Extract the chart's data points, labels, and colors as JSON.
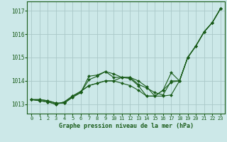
{
  "bg_color": "#cce8e8",
  "grid_color": "#aac8c8",
  "line_color": "#1a5c1a",
  "marker_color": "#1a5c1a",
  "xlabel": "Graphe pression niveau de la mer (hPa)",
  "xlabel_color": "#1a5c1a",
  "xlim": [
    -0.5,
    23.5
  ],
  "ylim": [
    1012.6,
    1017.4
  ],
  "yticks": [
    1013,
    1014,
    1015,
    1016,
    1017
  ],
  "xticks": [
    0,
    1,
    2,
    3,
    4,
    5,
    6,
    7,
    8,
    9,
    10,
    11,
    12,
    13,
    14,
    15,
    16,
    17,
    18,
    19,
    20,
    21,
    22,
    23
  ],
  "series": [
    [
      1013.2,
      1013.2,
      1013.15,
      1013.05,
      1013.05,
      1013.3,
      1013.5,
      1014.2,
      1014.25,
      1014.4,
      1014.3,
      1014.15,
      1014.15,
      1013.85,
      1013.7,
      1013.5,
      1013.4,
      1014.0,
      1014.0,
      1015.0,
      1015.5,
      1016.1,
      1016.5,
      1017.1
    ],
    [
      1013.2,
      1013.2,
      1013.15,
      1013.05,
      1013.05,
      1013.3,
      1013.5,
      1014.05,
      1014.2,
      1014.4,
      1014.15,
      1014.15,
      1014.15,
      1014.0,
      1013.75,
      1013.35,
      1013.35,
      1013.4,
      1014.0,
      1015.0,
      1015.5,
      1016.1,
      1016.5,
      1017.1
    ],
    [
      1013.2,
      1013.15,
      1013.1,
      1013.0,
      1013.1,
      1013.35,
      1013.55,
      1013.8,
      1013.9,
      1014.0,
      1014.0,
      1014.15,
      1014.1,
      1013.8,
      1013.35,
      1013.35,
      1013.6,
      1013.95,
      1014.0,
      1015.0,
      1015.5,
      1016.1,
      1016.5,
      1017.1
    ],
    [
      1013.2,
      1013.15,
      1013.1,
      1013.0,
      1013.1,
      1013.35,
      1013.55,
      1013.8,
      1013.9,
      1014.0,
      1014.0,
      1013.9,
      1013.8,
      1013.6,
      1013.35,
      1013.35,
      1013.6,
      1014.35,
      1014.0,
      1015.0,
      1015.5,
      1016.1,
      1016.5,
      1017.1
    ]
  ]
}
